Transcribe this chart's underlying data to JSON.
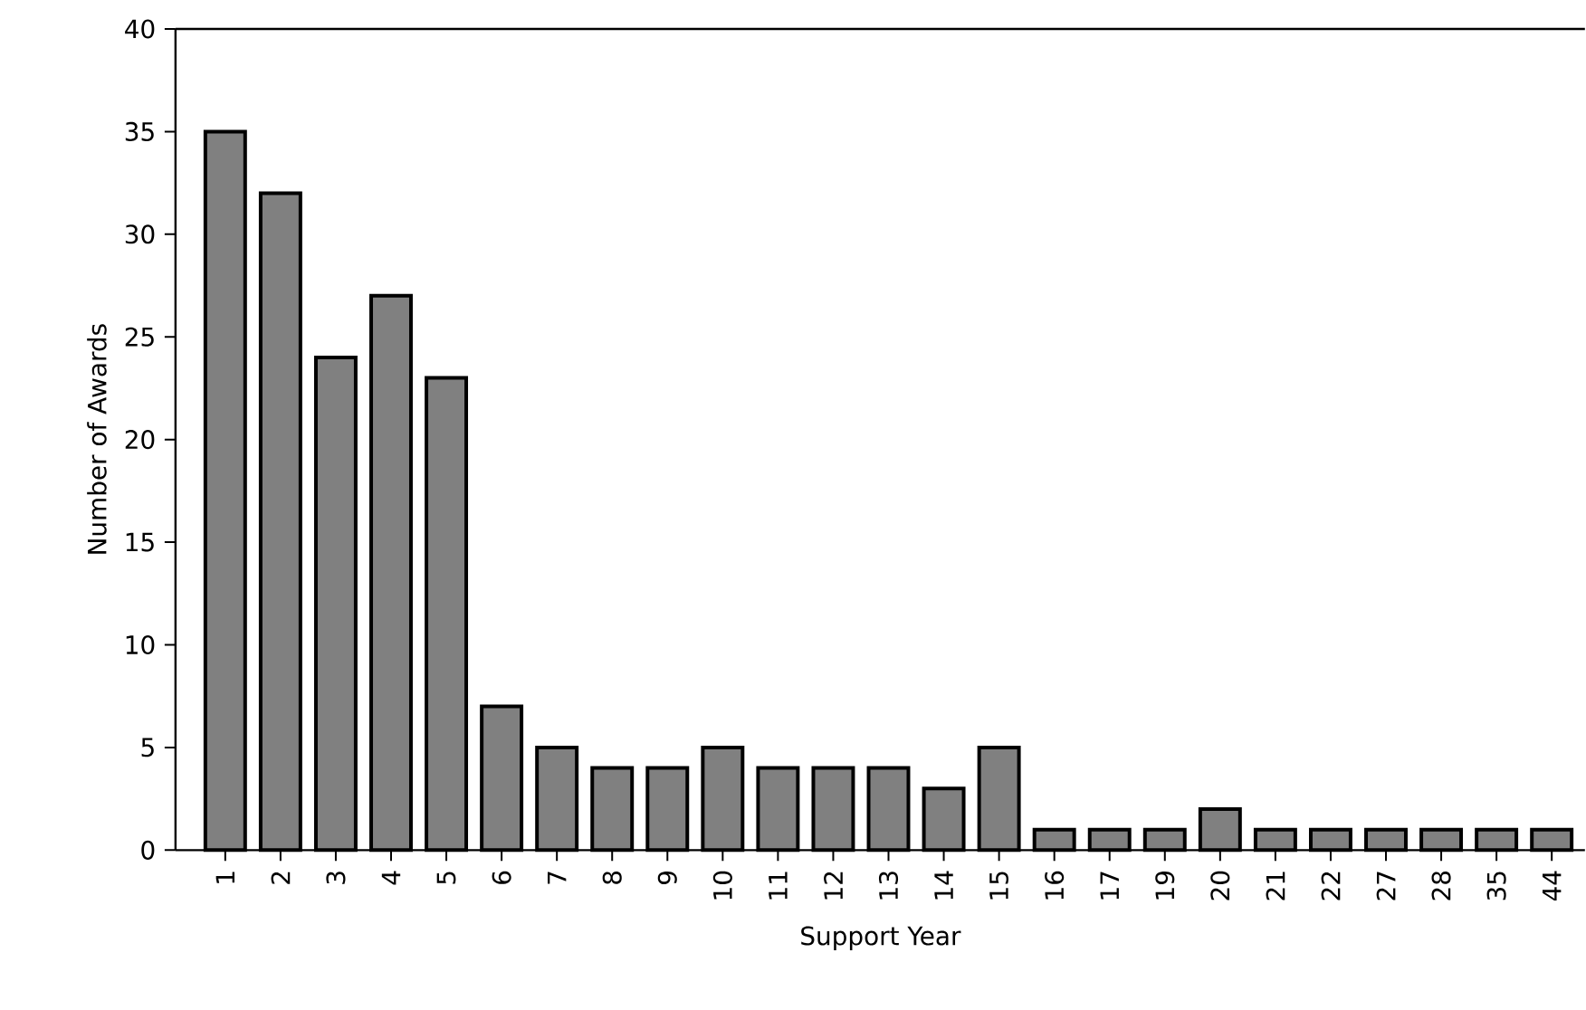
{
  "chart_data": {
    "type": "bar",
    "xlabel": "Support Year",
    "ylabel": "Number of Awards",
    "categories": [
      "1",
      "2",
      "3",
      "4",
      "5",
      "6",
      "7",
      "8",
      "9",
      "10",
      "11",
      "12",
      "13",
      "14",
      "15",
      "16",
      "17",
      "19",
      "20",
      "21",
      "22",
      "27",
      "28",
      "35",
      "44"
    ],
    "values": [
      35,
      32,
      24,
      27,
      23,
      7,
      5,
      4,
      4,
      5,
      4,
      4,
      4,
      3,
      5,
      1,
      1,
      1,
      2,
      1,
      1,
      1,
      1,
      1,
      1
    ],
    "color": "#808080",
    "ylim": [
      0,
      40
    ],
    "yticks": [
      0,
      5,
      10,
      15,
      20,
      25,
      30,
      35,
      40
    ]
  }
}
